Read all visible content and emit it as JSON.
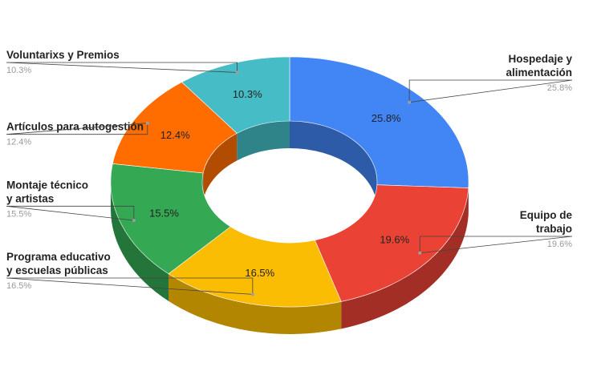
{
  "chart_data": {
    "type": "pie",
    "variant": "3d-donut",
    "title": "",
    "slices": [
      {
        "label": "Hospedaje y alimentación",
        "label_lines": [
          "Hospedaje y",
          "alimentación"
        ],
        "value": 25.8,
        "value_text": "25.8%",
        "color": "#4285f4",
        "side_color": "#2d5ba8"
      },
      {
        "label": "Equipo de trabajo",
        "label_lines": [
          "Equipo de",
          "trabajo"
        ],
        "value": 19.6,
        "value_text": "19.6%",
        "color": "#ea4335",
        "side_color": "#a32e25"
      },
      {
        "label": "Programa educativo y escuelas públicas",
        "label_lines": [
          "Programa educativo",
          "y escuelas públicas"
        ],
        "value": 16.5,
        "value_text": "16.5%",
        "color": "#fbbc04",
        "side_color": "#b38600"
      },
      {
        "label": "Montaje técnico y artistas",
        "label_lines": [
          "Montaje técnico",
          "y artistas"
        ],
        "value": 15.5,
        "value_text": "15.5%",
        "color": "#34a853",
        "side_color": "#237539"
      },
      {
        "label": "Artículos para autogestión",
        "label_lines": [
          "Artículos para autogestión"
        ],
        "value": 12.4,
        "value_text": "12.4%",
        "color": "#ff6d01",
        "side_color": "#b24c00"
      },
      {
        "label": "Voluntarixs y Premios",
        "label_lines": [
          "Voluntarixs y Premios"
        ],
        "value": 10.3,
        "value_text": "10.3%",
        "color": "#46bdc6",
        "side_color": "#2f848a"
      }
    ],
    "legend": "none"
  }
}
